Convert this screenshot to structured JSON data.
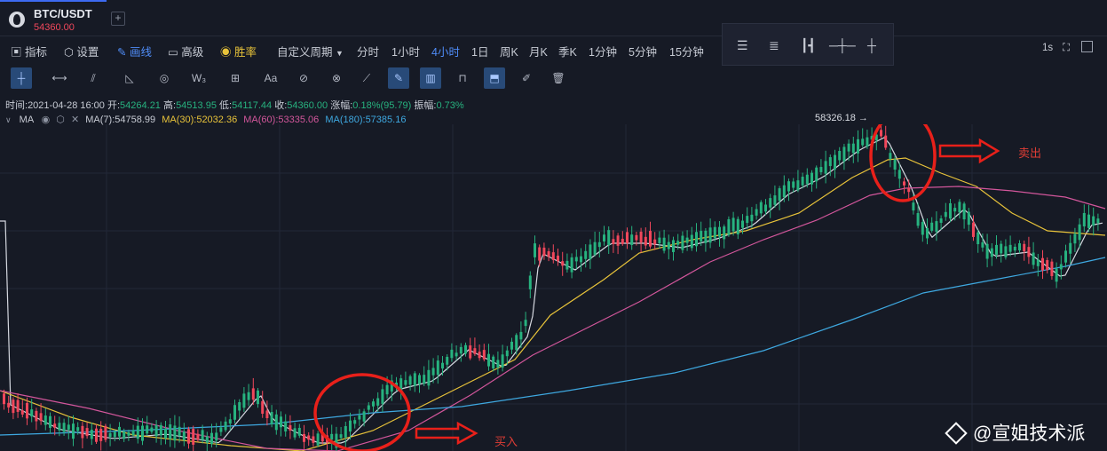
{
  "tab": {
    "pair": "BTC/USDT",
    "price": "54360.00"
  },
  "toolbar": {
    "indicators": "指标",
    "settings": "设置",
    "draw": "画线",
    "advanced": "高级",
    "win_rate": "胜率",
    "custom_period": "自定义周期",
    "periods": [
      "分时",
      "1小时",
      "4小时",
      "1日",
      "周K",
      "月K",
      "季K",
      "1分钟",
      "5分钟",
      "15分钟"
    ],
    "active_period": "4小时",
    "refresh": "1s"
  },
  "ohlc": {
    "time_label": "时间:",
    "time": "2021-04-28 16:00",
    "open_label": "开:",
    "open": "54264.21",
    "high_label": "高:",
    "high": "54513.95",
    "low_label": "低:",
    "low": "54117.44",
    "close_label": "收:",
    "close": "54360.00",
    "change_label": "涨幅:",
    "change": "0.18%(95.79)",
    "amp_label": "振幅:",
    "amplitude": "0.73%"
  },
  "ma": {
    "label": "MA",
    "ma7": "MA(7):54758.99",
    "ma30": "MA(30):52032.36",
    "ma60": "MA(60):53335.06",
    "ma180": "MA(180):57385.16"
  },
  "colors": {
    "up": "#27b27f",
    "down": "#f0475b",
    "ma7": "#d5d8e0",
    "ma30": "#e8c33a",
    "ma60": "#d2569b",
    "ma180": "#3ea8e0",
    "annotation": "#e8201a"
  },
  "chart": {
    "high_label": "58326.18 →"
  },
  "annotations": {
    "sell": "卖出",
    "buy": "买入"
  },
  "watermark": "@宣姐技术派"
}
